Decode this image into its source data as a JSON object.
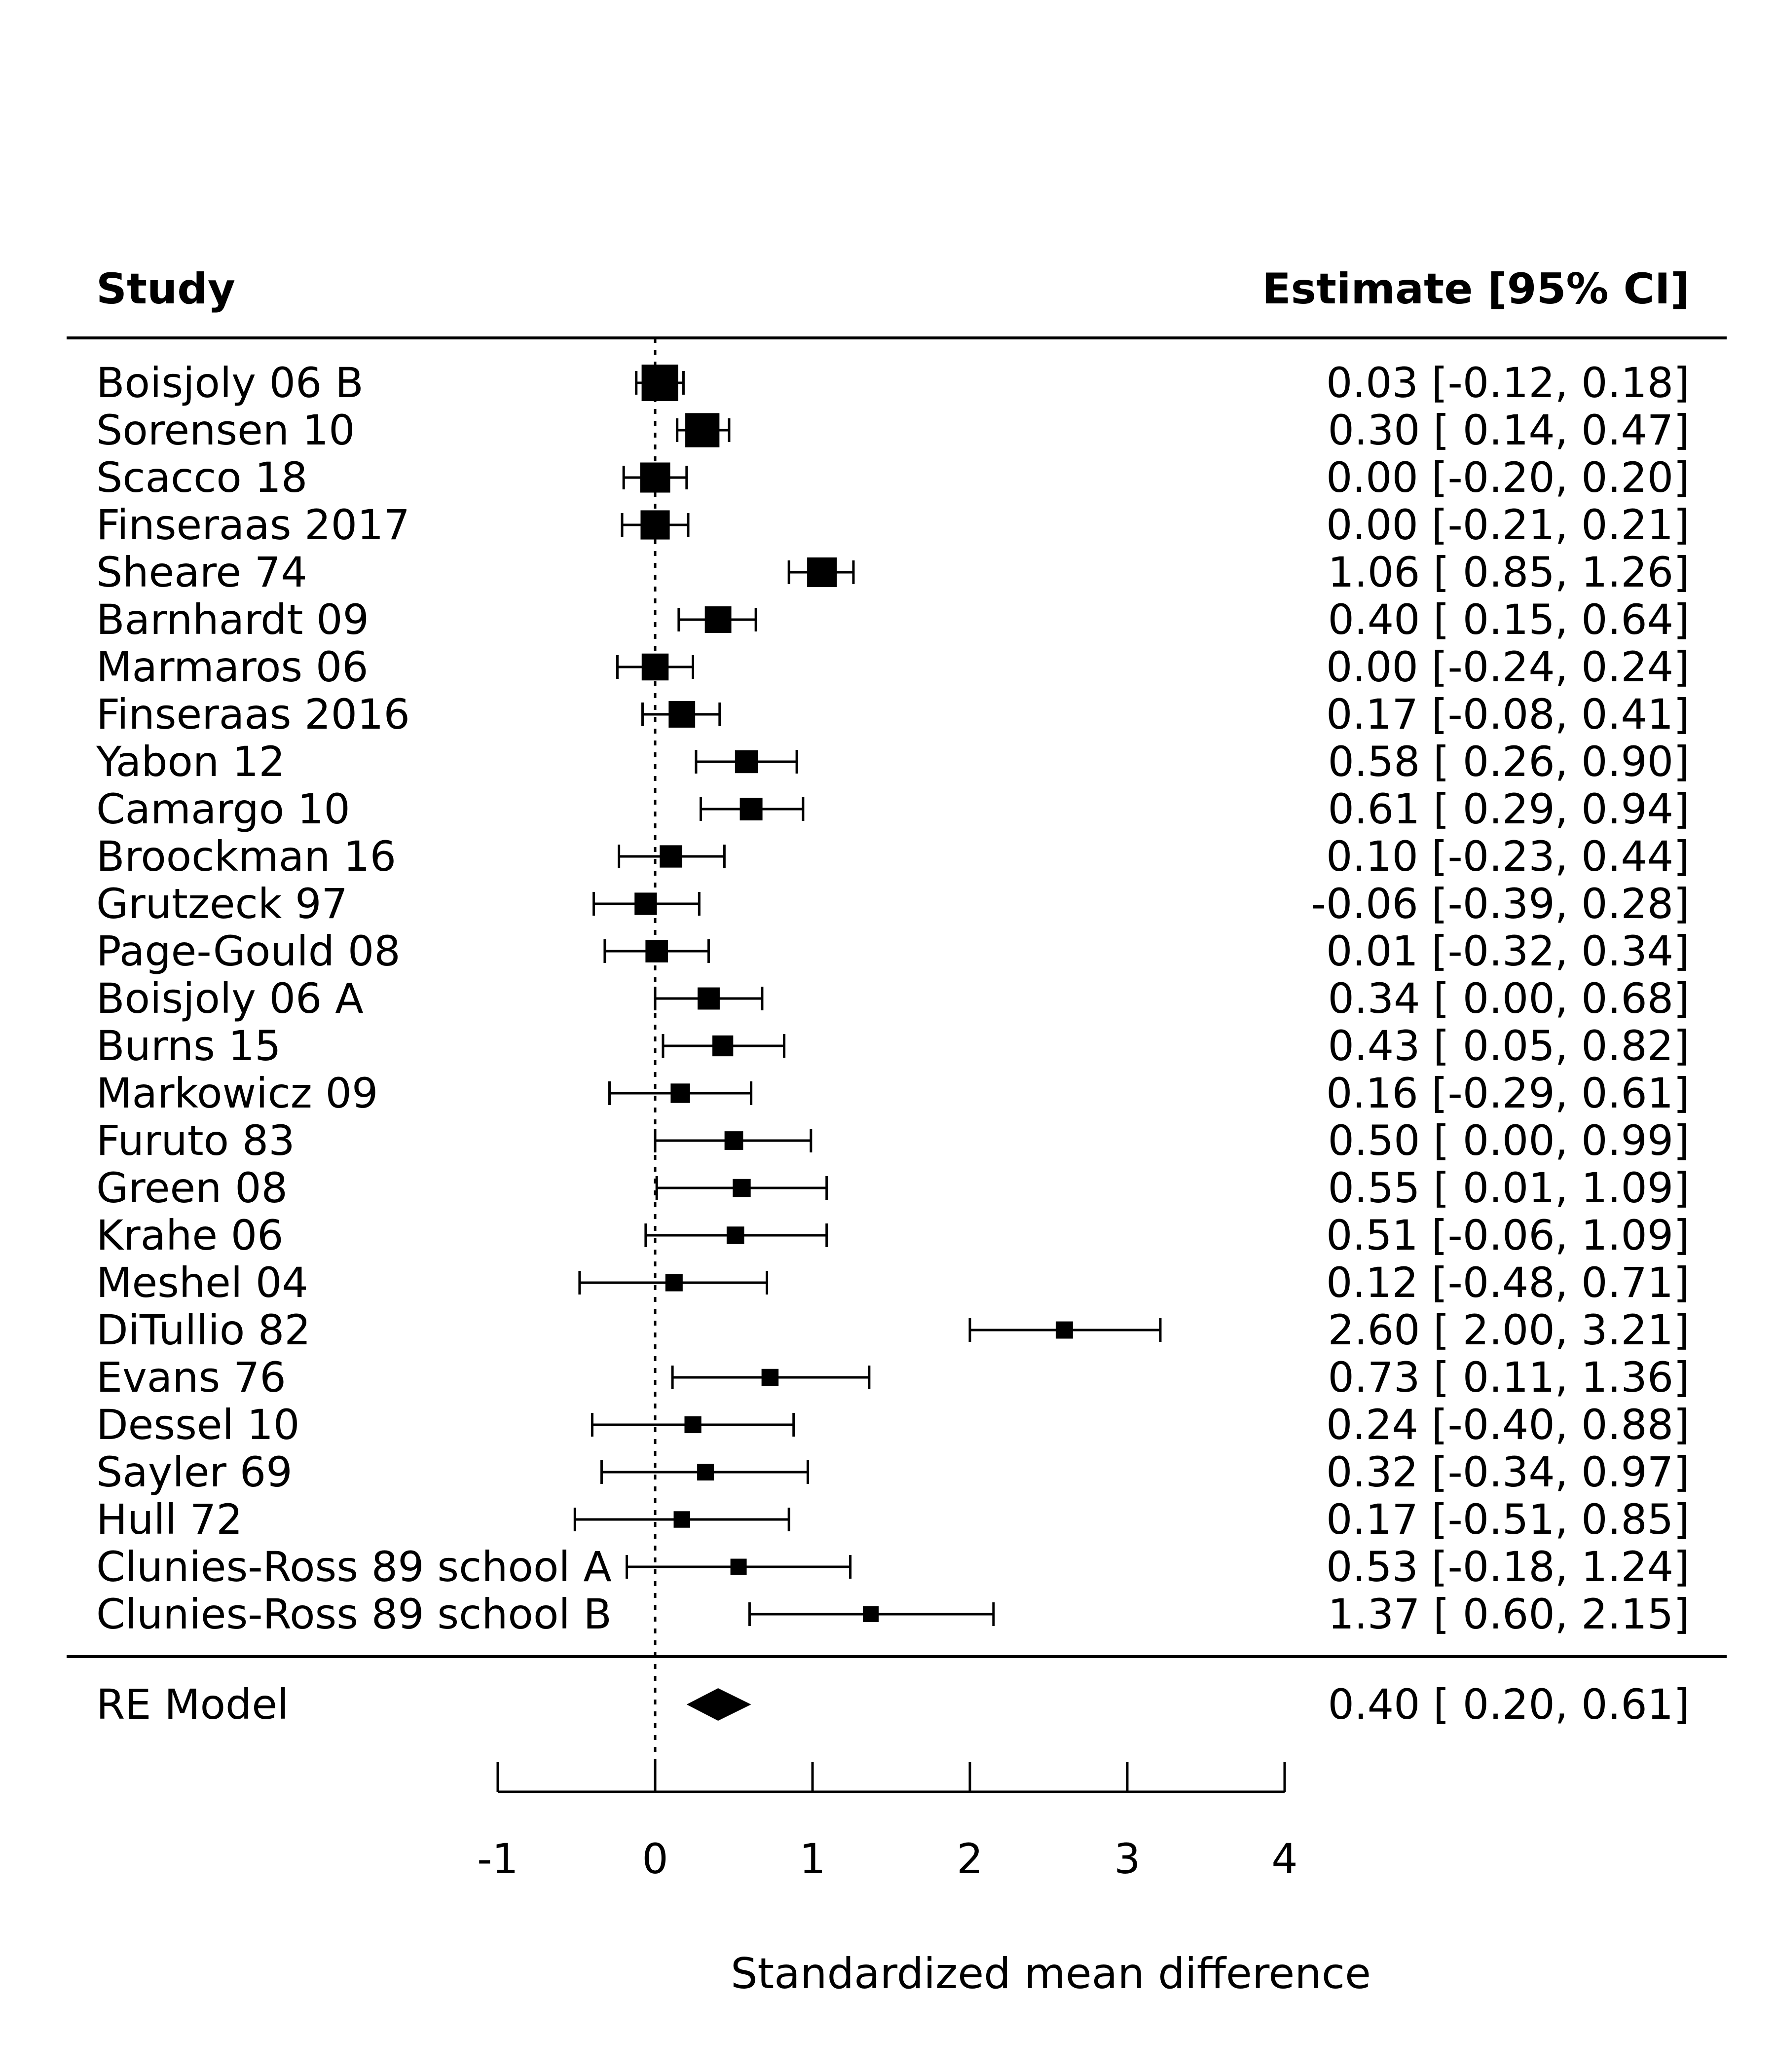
{
  "chart_data": {
    "type": "forest",
    "title": "",
    "header": {
      "study_label": "Study",
      "estimate_label": "Estimate [95% CI]"
    },
    "xlabel": "Standardized mean difference",
    "ylabel": "",
    "xlim": [
      -1,
      4
    ],
    "x_ticks": [
      -1,
      0,
      1,
      2,
      3,
      4
    ],
    "reference_line": 0,
    "studies": [
      {
        "name": "Boisjoly 06 B",
        "estimate": 0.03,
        "ci_low": -0.12,
        "ci_high": 0.18,
        "text": "0.03 [-0.12, 0.18]"
      },
      {
        "name": "Sorensen 10",
        "estimate": 0.3,
        "ci_low": 0.14,
        "ci_high": 0.47,
        "text": "0.30 [ 0.14, 0.47]"
      },
      {
        "name": "Scacco 18",
        "estimate": 0.0,
        "ci_low": -0.2,
        "ci_high": 0.2,
        "text": "0.00 [-0.20, 0.20]"
      },
      {
        "name": "Finseraas 2017",
        "estimate": 0.0,
        "ci_low": -0.21,
        "ci_high": 0.21,
        "text": "0.00 [-0.21, 0.21]"
      },
      {
        "name": "Sheare 74",
        "estimate": 1.06,
        "ci_low": 0.85,
        "ci_high": 1.26,
        "text": "1.06 [ 0.85, 1.26]"
      },
      {
        "name": "Barnhardt 09",
        "estimate": 0.4,
        "ci_low": 0.15,
        "ci_high": 0.64,
        "text": "0.40 [ 0.15, 0.64]"
      },
      {
        "name": "Marmaros 06",
        "estimate": 0.0,
        "ci_low": -0.24,
        "ci_high": 0.24,
        "text": "0.00 [-0.24, 0.24]"
      },
      {
        "name": "Finseraas 2016",
        "estimate": 0.17,
        "ci_low": -0.08,
        "ci_high": 0.41,
        "text": "0.17 [-0.08, 0.41]"
      },
      {
        "name": "Yabon 12",
        "estimate": 0.58,
        "ci_low": 0.26,
        "ci_high": 0.9,
        "text": "0.58 [ 0.26, 0.90]"
      },
      {
        "name": "Camargo 10",
        "estimate": 0.61,
        "ci_low": 0.29,
        "ci_high": 0.94,
        "text": "0.61 [ 0.29, 0.94]"
      },
      {
        "name": "Broockman 16",
        "estimate": 0.1,
        "ci_low": -0.23,
        "ci_high": 0.44,
        "text": "0.10 [-0.23, 0.44]"
      },
      {
        "name": "Grutzeck 97",
        "estimate": -0.06,
        "ci_low": -0.39,
        "ci_high": 0.28,
        "text": "-0.06 [-0.39, 0.28]"
      },
      {
        "name": "Page-Gould 08",
        "estimate": 0.01,
        "ci_low": -0.32,
        "ci_high": 0.34,
        "text": "0.01 [-0.32, 0.34]"
      },
      {
        "name": "Boisjoly 06 A",
        "estimate": 0.34,
        "ci_low": 0.0,
        "ci_high": 0.68,
        "text": "0.34 [ 0.00, 0.68]"
      },
      {
        "name": "Burns 15",
        "estimate": 0.43,
        "ci_low": 0.05,
        "ci_high": 0.82,
        "text": "0.43 [ 0.05, 0.82]"
      },
      {
        "name": "Markowicz 09",
        "estimate": 0.16,
        "ci_low": -0.29,
        "ci_high": 0.61,
        "text": "0.16 [-0.29, 0.61]"
      },
      {
        "name": "Furuto 83",
        "estimate": 0.5,
        "ci_low": 0.0,
        "ci_high": 0.99,
        "text": "0.50 [ 0.00, 0.99]"
      },
      {
        "name": "Green 08",
        "estimate": 0.55,
        "ci_low": 0.01,
        "ci_high": 1.09,
        "text": "0.55 [ 0.01, 1.09]"
      },
      {
        "name": "Krahe 06",
        "estimate": 0.51,
        "ci_low": -0.06,
        "ci_high": 1.09,
        "text": "0.51 [-0.06, 1.09]"
      },
      {
        "name": "Meshel 04",
        "estimate": 0.12,
        "ci_low": -0.48,
        "ci_high": 0.71,
        "text": "0.12 [-0.48, 0.71]"
      },
      {
        "name": "DiTullio 82",
        "estimate": 2.6,
        "ci_low": 2.0,
        "ci_high": 3.21,
        "text": "2.60 [ 2.00, 3.21]"
      },
      {
        "name": "Evans 76",
        "estimate": 0.73,
        "ci_low": 0.11,
        "ci_high": 1.36,
        "text": "0.73 [ 0.11, 1.36]"
      },
      {
        "name": "Dessel 10",
        "estimate": 0.24,
        "ci_low": -0.4,
        "ci_high": 0.88,
        "text": "0.24 [-0.40, 0.88]"
      },
      {
        "name": "Sayler 69",
        "estimate": 0.32,
        "ci_low": -0.34,
        "ci_high": 0.97,
        "text": "0.32 [-0.34, 0.97]"
      },
      {
        "name": "Hull 72",
        "estimate": 0.17,
        "ci_low": -0.51,
        "ci_high": 0.85,
        "text": "0.17 [-0.51, 0.85]"
      },
      {
        "name": "Clunies-Ross 89 school A",
        "estimate": 0.53,
        "ci_low": -0.18,
        "ci_high": 1.24,
        "text": "0.53 [-0.18, 1.24]"
      },
      {
        "name": "Clunies-Ross 89 school B",
        "estimate": 1.37,
        "ci_low": 0.6,
        "ci_high": 2.15,
        "text": "1.37 [ 0.60, 2.15]"
      }
    ],
    "summary": {
      "name": "RE Model",
      "estimate": 0.4,
      "ci_low": 0.2,
      "ci_high": 0.61,
      "text": "0.40 [ 0.20, 0.61]"
    },
    "colors": {
      "marks": "#000000",
      "background": "#ffffff"
    }
  }
}
